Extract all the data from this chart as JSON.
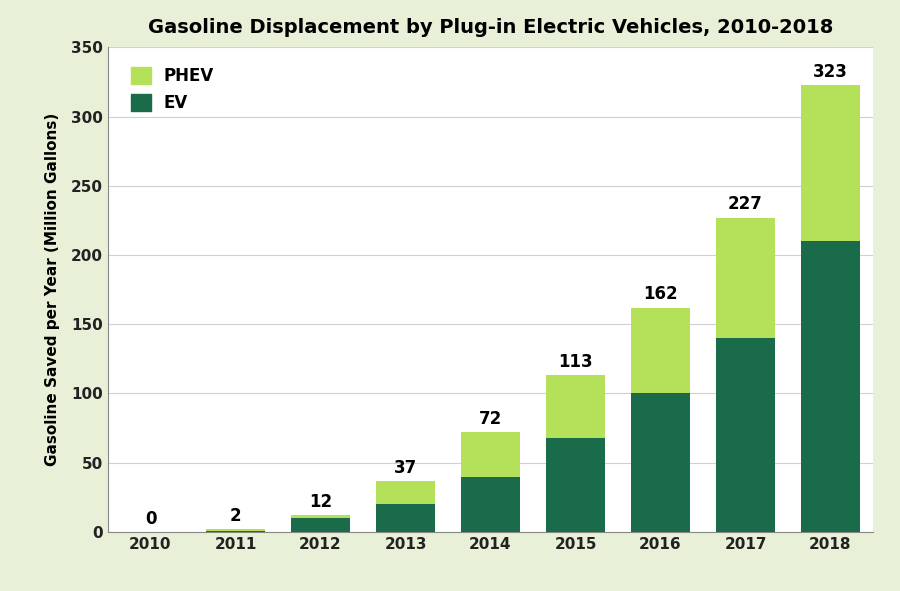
{
  "years": [
    "2010",
    "2011",
    "2012",
    "2013",
    "2014",
    "2015",
    "2016",
    "2017",
    "2018"
  ],
  "totals": [
    0,
    2,
    12,
    37,
    72,
    113,
    162,
    227,
    323
  ],
  "ev_values": [
    0,
    1,
    10,
    20,
    40,
    68,
    100,
    140,
    210
  ],
  "phev_color": "#b5e05a",
  "ev_color": "#1a6b4a",
  "background_color": "#e8f0d8",
  "plot_bg_color": "#ffffff",
  "title": "Gasoline Displacement by Plug-in Electric Vehicles, 2010-2018",
  "ylabel": "Gasoline Saved per Year (Million Gallons)",
  "ylim": [
    0,
    350
  ],
  "yticks": [
    0,
    50,
    100,
    150,
    200,
    250,
    300,
    350
  ],
  "title_fontsize": 14,
  "label_fontsize": 11,
  "tick_fontsize": 11,
  "annotation_fontsize": 12,
  "bar_width": 0.7
}
